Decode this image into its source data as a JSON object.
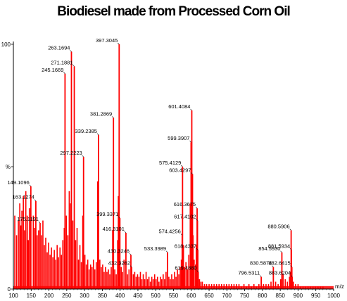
{
  "chart_data": {
    "type": "bar",
    "title": "Biodiesel made from Processed Corn Oil",
    "xlabel": "",
    "x_unit_label": "m/z",
    "ylabel": "%",
    "xlim": [
      100,
      1000
    ],
    "ylim": [
      0,
      100
    ],
    "x_ticks": [
      "100",
      "150",
      "200",
      "250",
      "300",
      "350",
      "400",
      "450",
      "500",
      "550",
      "600",
      "650",
      "700",
      "750",
      "800",
      "850",
      "900",
      "950",
      "1000"
    ],
    "y_ticks": [
      {
        "value": 0,
        "label": "0"
      },
      {
        "value": 50,
        "label": "%"
      },
      {
        "value": 100,
        "label": "100"
      }
    ],
    "bar_color": "#ff0000",
    "labeled_peaks": [
      {
        "mz": 149.1096,
        "intensity": 42,
        "label": "149.1096"
      },
      {
        "mz": 163.1274,
        "intensity": 36,
        "label": "163.1274"
      },
      {
        "mz": 175.1191,
        "intensity": 27,
        "label": "175.1191"
      },
      {
        "mz": 245.1669,
        "intensity": 88,
        "label": "245.1669"
      },
      {
        "mz": 263.1694,
        "intensity": 97,
        "label": "263.1694"
      },
      {
        "mz": 271.1881,
        "intensity": 91,
        "label": "271.1881"
      },
      {
        "mz": 297.2223,
        "intensity": 54,
        "label": "297.2223"
      },
      {
        "mz": 339.2385,
        "intensity": 63,
        "label": "339.2385"
      },
      {
        "mz": 381.2869,
        "intensity": 70,
        "label": "381.2869"
      },
      {
        "mz": 397.3045,
        "intensity": 100,
        "label": "397.3045"
      },
      {
        "mz": 399.3371,
        "intensity": 29,
        "label": "399.3371"
      },
      {
        "mz": 416.3101,
        "intensity": 23,
        "label": "416.3101"
      },
      {
        "mz": 430.3246,
        "intensity": 14,
        "label": "430.3246"
      },
      {
        "mz": 432.3262,
        "intensity": 9,
        "label": "432.3262"
      },
      {
        "mz": 533.3989,
        "intensity": 15,
        "label": "533.3989"
      },
      {
        "mz": 574.4256,
        "intensity": 22,
        "label": "574.4256"
      },
      {
        "mz": 575.4129,
        "intensity": 50,
        "label": "575.4129"
      },
      {
        "mz": 599.3907,
        "intensity": 60,
        "label": "599.3907"
      },
      {
        "mz": 601.4084,
        "intensity": 73,
        "label": "601.4084"
      },
      {
        "mz": 603.4297,
        "intensity": 47,
        "label": "603.4297"
      },
      {
        "mz": 616.3675,
        "intensity": 33,
        "label": "616.3675"
      },
      {
        "mz": 617.4102,
        "intensity": 28,
        "label": "617.4102"
      },
      {
        "mz": 618.4337,
        "intensity": 16,
        "label": "618.4337"
      },
      {
        "mz": 619.488,
        "intensity": 7,
        "label": "619.4880"
      },
      {
        "mz": 796.5311,
        "intensity": 5,
        "label": "796.5311"
      },
      {
        "mz": 830.5874,
        "intensity": 9,
        "label": "830.5874"
      },
      {
        "mz": 854.593,
        "intensity": 15,
        "label": "854.5930"
      },
      {
        "mz": 880.5906,
        "intensity": 24,
        "label": "880.5906"
      },
      {
        "mz": 881.5934,
        "intensity": 16,
        "label": "881.5934"
      },
      {
        "mz": 882.6415,
        "intensity": 9,
        "label": "882.6415"
      },
      {
        "mz": 883.6204,
        "intensity": 5,
        "label": "883.6204"
      }
    ],
    "unlabeled_peaks": [
      {
        "mz": 104,
        "intensity": 30
      },
      {
        "mz": 109,
        "intensity": 22
      },
      {
        "mz": 114,
        "intensity": 28
      },
      {
        "mz": 118,
        "intensity": 35
      },
      {
        "mz": 121,
        "intensity": 26
      },
      {
        "mz": 124,
        "intensity": 32
      },
      {
        "mz": 128,
        "intensity": 38
      },
      {
        "mz": 131,
        "intensity": 24
      },
      {
        "mz": 135,
        "intensity": 40
      },
      {
        "mz": 139,
        "intensity": 30
      },
      {
        "mz": 142,
        "intensity": 20
      },
      {
        "mz": 145,
        "intensity": 33
      },
      {
        "mz": 156,
        "intensity": 30
      },
      {
        "mz": 159,
        "intensity": 25
      },
      {
        "mz": 167,
        "intensity": 22
      },
      {
        "mz": 171,
        "intensity": 24
      },
      {
        "mz": 179,
        "intensity": 22
      },
      {
        "mz": 183,
        "intensity": 28
      },
      {
        "mz": 187,
        "intensity": 18
      },
      {
        "mz": 191,
        "intensity": 21
      },
      {
        "mz": 195,
        "intensity": 15
      },
      {
        "mz": 199,
        "intensity": 19
      },
      {
        "mz": 203,
        "intensity": 14
      },
      {
        "mz": 207,
        "intensity": 17
      },
      {
        "mz": 211,
        "intensity": 13
      },
      {
        "mz": 215,
        "intensity": 16
      },
      {
        "mz": 219,
        "intensity": 12
      },
      {
        "mz": 223,
        "intensity": 18
      },
      {
        "mz": 227,
        "intensity": 13
      },
      {
        "mz": 231,
        "intensity": 17
      },
      {
        "mz": 235,
        "intensity": 14
      },
      {
        "mz": 239,
        "intensity": 20
      },
      {
        "mz": 243,
        "intensity": 25
      },
      {
        "mz": 249,
        "intensity": 30
      },
      {
        "mz": 253,
        "intensity": 22
      },
      {
        "mz": 257,
        "intensity": 40
      },
      {
        "mz": 261,
        "intensity": 35
      },
      {
        "mz": 267,
        "intensity": 28
      },
      {
        "mz": 275,
        "intensity": 20
      },
      {
        "mz": 279,
        "intensity": 25
      },
      {
        "mz": 283,
        "intensity": 12
      },
      {
        "mz": 287,
        "intensity": 18
      },
      {
        "mz": 291,
        "intensity": 11
      },
      {
        "mz": 295,
        "intensity": 30
      },
      {
        "mz": 301,
        "intensity": 14
      },
      {
        "mz": 305,
        "intensity": 10
      },
      {
        "mz": 309,
        "intensity": 12
      },
      {
        "mz": 313,
        "intensity": 8
      },
      {
        "mz": 317,
        "intensity": 10
      },
      {
        "mz": 321,
        "intensity": 9
      },
      {
        "mz": 325,
        "intensity": 12
      },
      {
        "mz": 329,
        "intensity": 8
      },
      {
        "mz": 333,
        "intensity": 11
      },
      {
        "mz": 337,
        "intensity": 44
      },
      {
        "mz": 343,
        "intensity": 12
      },
      {
        "mz": 347,
        "intensity": 9
      },
      {
        "mz": 351,
        "intensity": 10
      },
      {
        "mz": 355,
        "intensity": 7
      },
      {
        "mz": 359,
        "intensity": 9
      },
      {
        "mz": 363,
        "intensity": 7
      },
      {
        "mz": 367,
        "intensity": 8
      },
      {
        "mz": 371,
        "intensity": 6
      },
      {
        "mz": 375,
        "intensity": 9
      },
      {
        "mz": 379,
        "intensity": 24
      },
      {
        "mz": 385,
        "intensity": 8
      },
      {
        "mz": 389,
        "intensity": 6
      },
      {
        "mz": 393,
        "intensity": 20
      },
      {
        "mz": 395,
        "intensity": 38
      },
      {
        "mz": 403,
        "intensity": 9
      },
      {
        "mz": 407,
        "intensity": 7
      },
      {
        "mz": 411,
        "intensity": 12
      },
      {
        "mz": 421,
        "intensity": 6
      },
      {
        "mz": 425,
        "intensity": 8
      },
      {
        "mz": 437,
        "intensity": 6
      },
      {
        "mz": 441,
        "intensity": 7
      },
      {
        "mz": 445,
        "intensity": 5
      },
      {
        "mz": 449,
        "intensity": 6
      },
      {
        "mz": 453,
        "intensity": 5
      },
      {
        "mz": 457,
        "intensity": 7
      },
      {
        "mz": 461,
        "intensity": 4
      },
      {
        "mz": 465,
        "intensity": 6
      },
      {
        "mz": 469,
        "intensity": 4
      },
      {
        "mz": 473,
        "intensity": 7
      },
      {
        "mz": 477,
        "intensity": 4
      },
      {
        "mz": 481,
        "intensity": 5
      },
      {
        "mz": 485,
        "intensity": 3
      },
      {
        "mz": 489,
        "intensity": 5
      },
      {
        "mz": 493,
        "intensity": 4
      },
      {
        "mz": 497,
        "intensity": 6
      },
      {
        "mz": 501,
        "intensity": 4
      },
      {
        "mz": 505,
        "intensity": 5
      },
      {
        "mz": 509,
        "intensity": 3
      },
      {
        "mz": 513,
        "intensity": 5
      },
      {
        "mz": 517,
        "intensity": 4
      },
      {
        "mz": 521,
        "intensity": 6
      },
      {
        "mz": 525,
        "intensity": 4
      },
      {
        "mz": 529,
        "intensity": 7
      },
      {
        "mz": 537,
        "intensity": 5
      },
      {
        "mz": 541,
        "intensity": 4
      },
      {
        "mz": 545,
        "intensity": 6
      },
      {
        "mz": 549,
        "intensity": 4
      },
      {
        "mz": 553,
        "intensity": 7
      },
      {
        "mz": 557,
        "intensity": 5
      },
      {
        "mz": 561,
        "intensity": 8
      },
      {
        "mz": 565,
        "intensity": 6
      },
      {
        "mz": 569,
        "intensity": 9
      },
      {
        "mz": 572,
        "intensity": 12
      },
      {
        "mz": 578,
        "intensity": 18
      },
      {
        "mz": 581,
        "intensity": 9
      },
      {
        "mz": 585,
        "intensity": 11
      },
      {
        "mz": 589,
        "intensity": 8
      },
      {
        "mz": 593,
        "intensity": 14
      },
      {
        "mz": 597,
        "intensity": 35
      },
      {
        "mz": 605,
        "intensity": 22
      },
      {
        "mz": 608,
        "intensity": 12
      },
      {
        "mz": 612,
        "intensity": 10
      },
      {
        "mz": 614,
        "intensity": 18
      },
      {
        "mz": 623,
        "intensity": 4
      },
      {
        "mz": 627,
        "intensity": 3
      },
      {
        "mz": 631,
        "intensity": 3
      },
      {
        "mz": 637,
        "intensity": 2
      },
      {
        "mz": 643,
        "intensity": 2
      },
      {
        "mz": 650,
        "intensity": 2
      },
      {
        "mz": 657,
        "intensity": 2
      },
      {
        "mz": 664,
        "intensity": 2
      },
      {
        "mz": 671,
        "intensity": 2
      },
      {
        "mz": 678,
        "intensity": 2
      },
      {
        "mz": 685,
        "intensity": 2
      },
      {
        "mz": 692,
        "intensity": 2
      },
      {
        "mz": 699,
        "intensity": 2
      },
      {
        "mz": 706,
        "intensity": 2
      },
      {
        "mz": 713,
        "intensity": 2
      },
      {
        "mz": 720,
        "intensity": 2
      },
      {
        "mz": 727,
        "intensity": 2
      },
      {
        "mz": 734,
        "intensity": 2
      },
      {
        "mz": 741,
        "intensity": 1
      },
      {
        "mz": 748,
        "intensity": 2
      },
      {
        "mz": 755,
        "intensity": 1
      },
      {
        "mz": 762,
        "intensity": 2
      },
      {
        "mz": 769,
        "intensity": 1
      },
      {
        "mz": 776,
        "intensity": 2
      },
      {
        "mz": 783,
        "intensity": 1
      },
      {
        "mz": 790,
        "intensity": 2
      },
      {
        "mz": 803,
        "intensity": 2
      },
      {
        "mz": 810,
        "intensity": 2
      },
      {
        "mz": 817,
        "intensity": 2
      },
      {
        "mz": 824,
        "intensity": 3
      },
      {
        "mz": 837,
        "intensity": 3
      },
      {
        "mz": 844,
        "intensity": 2
      },
      {
        "mz": 851,
        "intensity": 4
      },
      {
        "mz": 858,
        "intensity": 6
      },
      {
        "mz": 864,
        "intensity": 4
      },
      {
        "mz": 870,
        "intensity": 3
      },
      {
        "mz": 876,
        "intensity": 5
      },
      {
        "mz": 878,
        "intensity": 7
      },
      {
        "mz": 887,
        "intensity": 3
      },
      {
        "mz": 893,
        "intensity": 2
      },
      {
        "mz": 900,
        "intensity": 2
      },
      {
        "mz": 907,
        "intensity": 1
      },
      {
        "mz": 914,
        "intensity": 1
      },
      {
        "mz": 921,
        "intensity": 1
      },
      {
        "mz": 928,
        "intensity": 1
      },
      {
        "mz": 935,
        "intensity": 1
      },
      {
        "mz": 942,
        "intensity": 1
      },
      {
        "mz": 949,
        "intensity": 1
      },
      {
        "mz": 956,
        "intensity": 1
      },
      {
        "mz": 963,
        "intensity": 1
      },
      {
        "mz": 970,
        "intensity": 1
      }
    ]
  }
}
